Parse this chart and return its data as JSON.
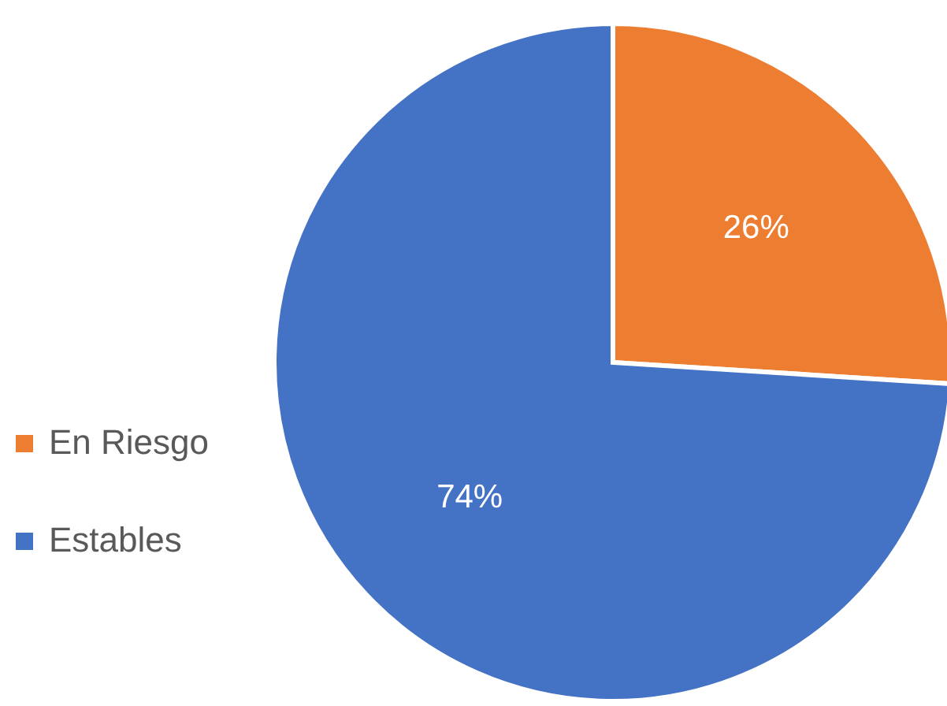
{
  "chart_data": {
    "type": "pie",
    "categories": [
      "En Riesgo",
      "Estables"
    ],
    "values": [
      26,
      74
    ],
    "colors": [
      "#ed7d31",
      "#4472c4"
    ],
    "value_labels": [
      "26%",
      "74%"
    ],
    "legend": "left"
  }
}
